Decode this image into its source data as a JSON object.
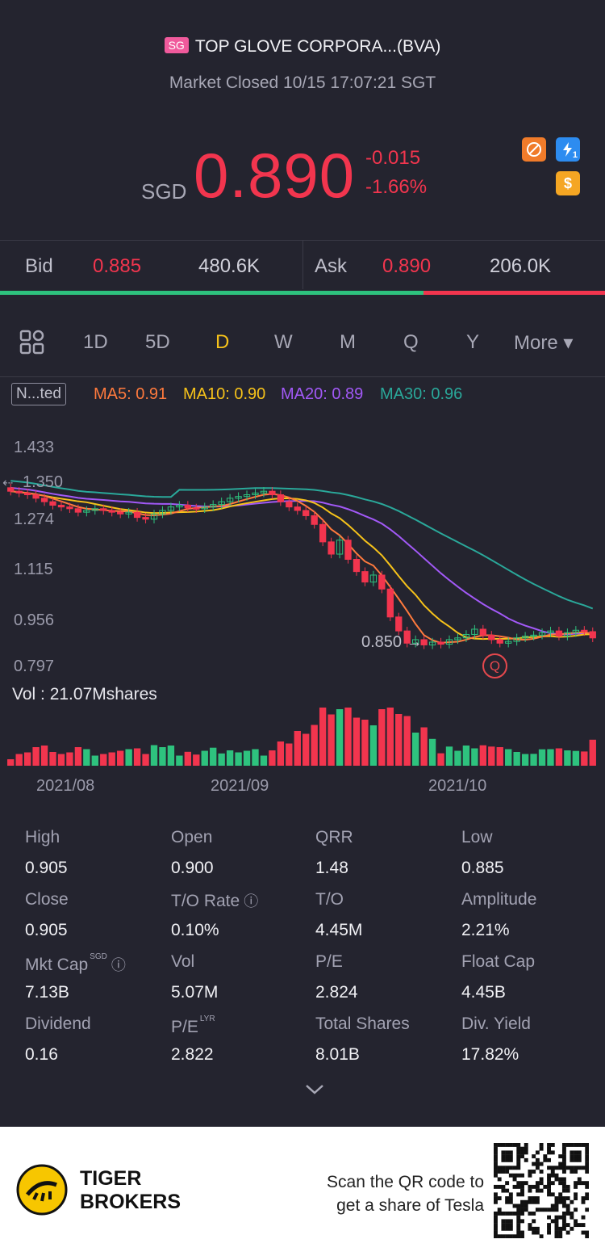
{
  "header": {
    "market_badge": "SG",
    "title": "TOP GLOVE CORPORA...(BVA)",
    "status": "Market Closed 10/15 17:07:21 SGT"
  },
  "quote": {
    "currency": "SGD",
    "price": "0.890",
    "change": "-0.015",
    "change_pct": "-1.66%",
    "badge_currency_symbol": "$",
    "badge_lightning_sub": "1"
  },
  "bidask": {
    "bid_label": "Bid",
    "bid_price": "0.885",
    "bid_volume": "480.6K",
    "ask_label": "Ask",
    "ask_price": "0.890",
    "ask_volume": "206.0K",
    "bid_ratio": 0.7
  },
  "tabs": [
    "1D",
    "5D",
    "D",
    "W",
    "M",
    "Q",
    "Y",
    "More ▾"
  ],
  "active_tab": "D",
  "indicator": {
    "selector": "N...ted",
    "ma5": "MA5: 0.91",
    "ma10": "MA10: 0.90",
    "ma20": "MA20: 0.89",
    "ma30": "MA30: 0.96"
  },
  "chart_data": {
    "type": "candlestick",
    "y_ticks": [
      "1.433",
      "1.350",
      "1.274",
      "1.115",
      "0.956",
      "0.797"
    ],
    "low_marker": "0.850",
    "event_marker": "Q",
    "vol_label": "Vol  : 21.07Mshares",
    "x_ticks": [
      "2021/08",
      "2021/09",
      "2021/10"
    ],
    "closes": [
      1.31,
      1.305,
      1.3,
      1.29,
      1.28,
      1.27,
      1.265,
      1.26,
      1.25,
      1.255,
      1.26,
      1.255,
      1.25,
      1.245,
      1.25,
      1.235,
      1.23,
      1.245,
      1.255,
      1.265,
      1.27,
      1.262,
      1.26,
      1.265,
      1.272,
      1.28,
      1.29,
      1.295,
      1.3,
      1.305,
      1.31,
      1.3,
      1.28,
      1.265,
      1.255,
      1.24,
      1.215,
      1.165,
      1.13,
      1.17,
      1.115,
      1.08,
      1.05,
      1.07,
      1.03,
      0.95,
      0.91,
      0.875,
      0.885,
      0.87,
      0.878,
      0.872,
      0.885,
      0.89,
      0.9,
      0.915,
      0.898,
      0.885,
      0.875,
      0.88,
      0.89,
      0.895,
      0.898,
      0.905,
      0.91,
      0.895,
      0.905,
      0.912,
      0.908,
      0.89
    ],
    "volume_colors": "red_green_by_day",
    "colors": {
      "up": "#2ec27e",
      "down": "#f2354e",
      "ma5": "#ff7a3d",
      "ma10": "#f6c21a",
      "ma20": "#a259f7",
      "ma30": "#2aa89a"
    }
  },
  "stats": [
    {
      "label": "High",
      "value": "0.905"
    },
    {
      "label": "Open",
      "value": "0.900"
    },
    {
      "label": "QRR",
      "value": "1.48"
    },
    {
      "label": "Low",
      "value": "0.885"
    },
    {
      "label": "Close",
      "value": "0.905"
    },
    {
      "label": "T/O Rate",
      "value": "0.10%"
    },
    {
      "label": "T/O",
      "value": "4.45M"
    },
    {
      "label": "Amplitude",
      "value": "2.21%"
    },
    {
      "label": "Mkt Cap",
      "value": "7.13B",
      "sup": "SGD"
    },
    {
      "label": "Vol",
      "value": "5.07M"
    },
    {
      "label": "P/E",
      "value": "2.824"
    },
    {
      "label": "Float Cap",
      "value": "4.45B"
    },
    {
      "label": "Dividend",
      "value": "0.16"
    },
    {
      "label": "P/E",
      "value": "2.822",
      "sup": "LYR"
    },
    {
      "label": "Total Shares",
      "value": "8.01B"
    },
    {
      "label": "Div. Yield",
      "value": "17.82%"
    }
  ],
  "footer": {
    "brand_line1": "TIGER",
    "brand_line2": "BROKERS",
    "promo_line1": "Scan the QR code to",
    "promo_line2": "get a share of Tesla"
  }
}
